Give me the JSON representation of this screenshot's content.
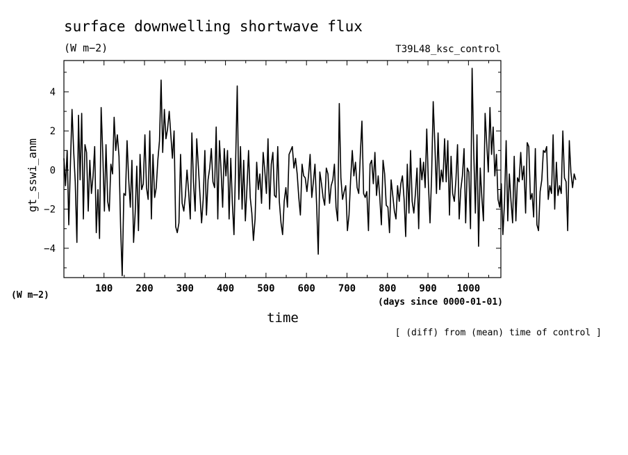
{
  "chart_data": {
    "type": "line",
    "title": "surface downwelling shortwave flux",
    "title_units": "(W m−2)",
    "experiment": "T39L48_ksc_control",
    "ylabel": "gt_sswi_anm",
    "yunits": "(W m−2)",
    "xlabel": "time",
    "xunits": "(days since 0000-01-01)",
    "note": "[ (diff) from (mean) time of control ]",
    "xlim": [
      1,
      1080
    ],
    "ylim": [
      -5.5,
      5.6
    ],
    "xticks": [
      100,
      200,
      300,
      400,
      500,
      600,
      700,
      800,
      900,
      1000
    ],
    "yticks": [
      -4,
      -2,
      0,
      2,
      4
    ],
    "grid": false,
    "series": [
      {
        "color": "#000000",
        "x_start": 1,
        "x_step": 4,
        "values": [
          0.6,
          -0.8,
          1.0,
          -2.8,
          0.2,
          3.1,
          1.0,
          -0.6,
          -3.7,
          2.8,
          -0.5,
          2.9,
          -2.5,
          1.3,
          0.9,
          -2.1,
          0.5,
          -1.2,
          -0.3,
          1.2,
          -3.2,
          -1.0,
          -3.5,
          3.2,
          0.8,
          -2.1,
          1.3,
          -1.6,
          -2.1,
          0.3,
          -0.2,
          2.7,
          1.0,
          1.8,
          0.7,
          -2.9,
          -5.4,
          -1.2,
          -1.3,
          1.5,
          -0.5,
          -1.9,
          0.5,
          -3.7,
          -2.2,
          0.2,
          -3.1,
          0.8,
          -1.0,
          -0.7,
          1.8,
          -0.9,
          -1.5,
          2.0,
          -2.5,
          0.8,
          -1.4,
          -0.9,
          0.5,
          1.5,
          4.6,
          0.9,
          3.1,
          1.6,
          2.1,
          3.0,
          1.8,
          0.6,
          2.0,
          -2.9,
          -3.2,
          -2.7,
          0.8,
          -1.7,
          -2.1,
          -1.3,
          0.0,
          -1.1,
          -2.5,
          1.9,
          -0.6,
          -2.1,
          1.6,
          0.2,
          -1.3,
          -2.7,
          -1.5,
          1.0,
          -2.3,
          -0.5,
          0.1,
          1.1,
          -0.6,
          -0.9,
          2.2,
          -2.5,
          1.5,
          0.0,
          -1.9,
          1.1,
          -0.3,
          1.0,
          -2.5,
          0.6,
          -1.7,
          -3.3,
          0.4,
          4.3,
          -1.5,
          1.2,
          -2.0,
          0.5,
          -2.6,
          -0.9,
          1.0,
          -1.4,
          -2.2,
          -3.6,
          -2.5,
          0.4,
          -1.0,
          -0.2,
          -1.7,
          0.9,
          0.0,
          -1.2,
          1.6,
          -2.0,
          0.3,
          0.9,
          -1.3,
          -1.4,
          1.2,
          -1.6,
          -2.7,
          -3.3,
          -1.6,
          -0.9,
          -1.9,
          0.8,
          1.0,
          1.2,
          0.1,
          0.6,
          -0.2,
          -1.4,
          -2.3,
          0.3,
          -0.3,
          -0.4,
          -1.1,
          -0.3,
          0.8,
          -1.4,
          -0.6,
          0.3,
          -1.8,
          -4.3,
          -0.1,
          -0.7,
          -1.4,
          -1.8,
          0.1,
          -0.2,
          -1.7,
          -0.8,
          -0.5,
          0.3,
          -1.9,
          -2.6,
          3.4,
          -0.4,
          -1.5,
          -1.1,
          -0.8,
          -3.1,
          -2.3,
          -0.5,
          1.0,
          -0.3,
          0.4,
          -0.9,
          -1.2,
          0.8,
          2.5,
          -1.2,
          -1.4,
          -1.1,
          -3.1,
          0.3,
          0.5,
          -0.7,
          0.9,
          -1.3,
          -0.3,
          -1.4,
          -2.8,
          0.5,
          -0.2,
          -1.8,
          -1.9,
          -3.2,
          -0.5,
          -1.3,
          -2.1,
          -2.5,
          -0.8,
          -1.6,
          -0.7,
          -0.3,
          -1.5,
          -3.4,
          0.3,
          -2.2,
          1.0,
          -1.6,
          -2.2,
          -1.2,
          0.1,
          -3.0,
          0.6,
          -0.5,
          0.4,
          -0.9,
          2.1,
          -0.7,
          -2.7,
          -0.3,
          3.5,
          1.3,
          -1.2,
          1.9,
          -1.0,
          0.0,
          -0.6,
          1.6,
          -0.6,
          1.5,
          -2.3,
          0.7,
          -1.2,
          -1.6,
          -0.5,
          1.3,
          -2.5,
          -1.0,
          -0.3,
          1.1,
          -2.7,
          0.1,
          -0.1,
          -3.0,
          5.2,
          1.0,
          -2.2,
          1.8,
          -3.9,
          0.1,
          -1.4,
          -2.6,
          2.9,
          1.4,
          -0.1,
          3.2,
          0.8,
          2.2,
          -0.3,
          0.8,
          -1.5,
          -1.9,
          -0.7,
          -3.3,
          -1.7,
          1.5,
          -2.6,
          -0.2,
          -1.6,
          -2.7,
          0.7,
          -2.6,
          -0.4,
          -0.6,
          0.9,
          -0.5,
          0.2,
          -2.2,
          1.4,
          1.2,
          -1.5,
          -1.2,
          -2.4,
          1.1,
          -2.8,
          -3.1,
          -1.1,
          -0.5,
          1.0,
          0.9,
          1.2,
          -1.5,
          -0.8,
          -1.2,
          1.8,
          -2.0,
          0.4,
          -1.3,
          -0.8,
          -1.2,
          2.0,
          -0.4,
          -0.6,
          -3.1,
          1.5,
          -0.1,
          -0.9,
          -0.2,
          -0.5
        ]
      }
    ]
  }
}
